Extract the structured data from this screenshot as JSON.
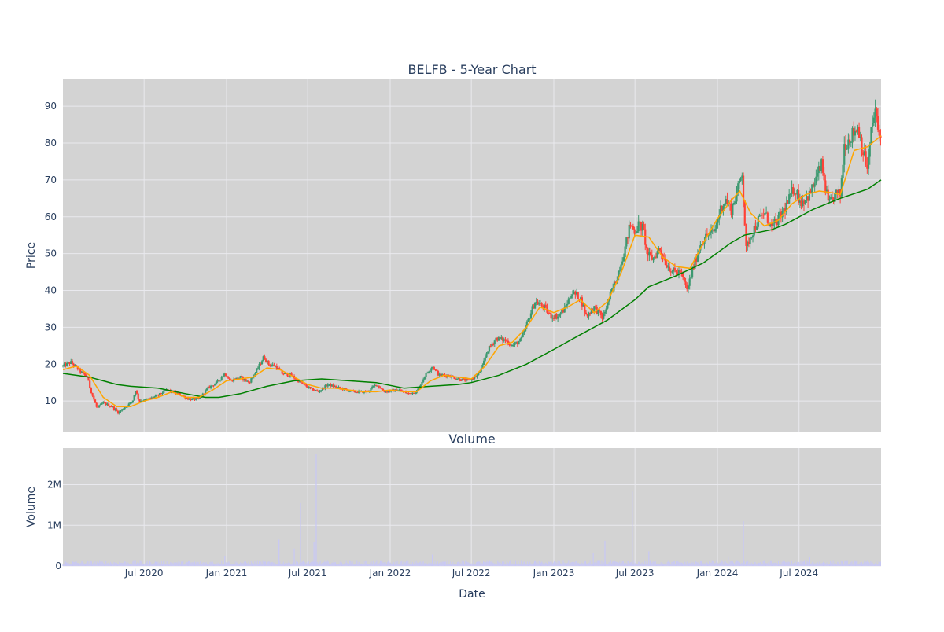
{
  "chart_data": {
    "type": "candlestick",
    "title": "BELFB - 5-Year Chart",
    "subplot_title": "Volume",
    "xlabel": "Date",
    "ylabel_price": "Price",
    "ylabel_volume": "Volume",
    "x_range": [
      "2020-01-02",
      "2024-12-31"
    ],
    "x_ticks": [
      {
        "date": "2020-07-01",
        "label": "Jul 2020"
      },
      {
        "date": "2021-01-01",
        "label": "Jan 2021"
      },
      {
        "date": "2021-07-01",
        "label": "Jul 2021"
      },
      {
        "date": "2022-01-01",
        "label": "Jan 2022"
      },
      {
        "date": "2022-07-01",
        "label": "Jul 2022"
      },
      {
        "date": "2023-01-01",
        "label": "Jan 2023"
      },
      {
        "date": "2023-07-01",
        "label": "Jul 2023"
      },
      {
        "date": "2024-01-01",
        "label": "Jan 2024"
      },
      {
        "date": "2024-07-01",
        "label": "Jul 2024"
      }
    ],
    "price_ylim": [
      1.5,
      97.5
    ],
    "price_ticks": [
      10,
      20,
      30,
      40,
      50,
      60,
      70,
      80,
      90
    ],
    "volume_ylim": [
      0,
      2900000
    ],
    "volume_ticks": [
      {
        "value": 0,
        "label": "0"
      },
      {
        "value": 1000000,
        "label": "1M"
      },
      {
        "value": 2000000,
        "label": "2M"
      }
    ],
    "grid": true,
    "colors": {
      "plot_bg": "#d3d3d3",
      "grid": "#e9e9ee",
      "increasing": "#3d9970",
      "decreasing": "#ff4136",
      "ma_short": "#ffa500",
      "ma_long": "#008000",
      "volume": "#c8c8f5"
    },
    "price_path": [
      [
        "2020-01-02",
        19.5
      ],
      [
        "2020-01-20",
        20.5
      ],
      [
        "2020-02-10",
        18.0
      ],
      [
        "2020-02-25",
        16.5
      ],
      [
        "2020-03-05",
        12.5
      ],
      [
        "2020-03-18",
        8.0
      ],
      [
        "2020-04-01",
        9.5
      ],
      [
        "2020-04-20",
        8.5
      ],
      [
        "2020-05-05",
        6.8
      ],
      [
        "2020-05-20",
        8.5
      ],
      [
        "2020-06-05",
        9.8
      ],
      [
        "2020-06-12",
        13.0
      ],
      [
        "2020-06-20",
        10.0
      ],
      [
        "2020-07-10",
        10.5
      ],
      [
        "2020-08-01",
        11.5
      ],
      [
        "2020-08-20",
        13.0
      ],
      [
        "2020-09-15",
        12.0
      ],
      [
        "2020-10-10",
        10.5
      ],
      [
        "2020-11-01",
        10.5
      ],
      [
        "2020-11-20",
        13.5
      ],
      [
        "2020-12-10",
        15.0
      ],
      [
        "2020-12-28",
        17.5
      ],
      [
        "2021-01-10",
        15.5
      ],
      [
        "2021-02-01",
        16.5
      ],
      [
        "2021-02-20",
        15.0
      ],
      [
        "2021-03-10",
        18.5
      ],
      [
        "2021-03-25",
        22.0
      ],
      [
        "2021-04-05",
        20.0
      ],
      [
        "2021-04-20",
        19.5
      ],
      [
        "2021-05-05",
        17.5
      ],
      [
        "2021-05-25",
        17.0
      ],
      [
        "2021-06-15",
        15.0
      ],
      [
        "2021-07-05",
        13.5
      ],
      [
        "2021-07-25",
        12.5
      ],
      [
        "2021-08-15",
        14.5
      ],
      [
        "2021-09-10",
        13.5
      ],
      [
        "2021-10-10",
        12.5
      ],
      [
        "2021-11-10",
        12.5
      ],
      [
        "2021-12-01",
        14.5
      ],
      [
        "2021-12-20",
        12.5
      ],
      [
        "2022-01-20",
        13.0
      ],
      [
        "2022-02-10",
        12.0
      ],
      [
        "2022-03-01",
        12.5
      ],
      [
        "2022-03-20",
        17.0
      ],
      [
        "2022-04-05",
        19.5
      ],
      [
        "2022-04-20",
        17.0
      ],
      [
        "2022-05-10",
        17.0
      ],
      [
        "2022-06-01",
        16.0
      ],
      [
        "2022-06-25",
        15.5
      ],
      [
        "2022-07-15",
        17.0
      ],
      [
        "2022-07-25",
        19.0
      ],
      [
        "2022-08-05",
        23.5
      ],
      [
        "2022-08-25",
        27.0
      ],
      [
        "2022-09-15",
        26.5
      ],
      [
        "2022-10-01",
        25.0
      ],
      [
        "2022-10-20",
        26.5
      ],
      [
        "2022-11-05",
        32.0
      ],
      [
        "2022-11-20",
        37.0
      ],
      [
        "2022-12-10",
        35.5
      ],
      [
        "2022-12-25",
        33.0
      ],
      [
        "2023-01-10",
        33.0
      ],
      [
        "2023-01-25",
        35.0
      ],
      [
        "2023-02-10",
        39.5
      ],
      [
        "2023-03-01",
        38.0
      ],
      [
        "2023-03-15",
        33.0
      ],
      [
        "2023-04-01",
        35.5
      ],
      [
        "2023-04-20",
        32.5
      ],
      [
        "2023-05-05",
        38.0
      ],
      [
        "2023-05-20",
        43.0
      ],
      [
        "2023-06-10",
        52.0
      ],
      [
        "2023-06-20",
        58.0
      ],
      [
        "2023-07-01",
        56.0
      ],
      [
        "2023-07-10",
        58.0
      ],
      [
        "2023-07-20",
        56.5
      ],
      [
        "2023-07-28",
        50.0
      ],
      [
        "2023-08-10",
        48.5
      ],
      [
        "2023-08-25",
        51.5
      ],
      [
        "2023-09-10",
        47.0
      ],
      [
        "2023-09-25",
        45.0
      ],
      [
        "2023-10-10",
        45.0
      ],
      [
        "2023-10-25",
        40.0
      ],
      [
        "2023-11-10",
        47.0
      ],
      [
        "2023-11-25",
        53.0
      ],
      [
        "2023-12-10",
        55.0
      ],
      [
        "2023-12-25",
        56.0
      ],
      [
        "2024-01-10",
        63.0
      ],
      [
        "2024-01-20",
        64.5
      ],
      [
        "2024-02-01",
        62.0
      ],
      [
        "2024-02-15",
        67.0
      ],
      [
        "2024-02-25",
        72.5
      ],
      [
        "2024-03-05",
        51.0
      ],
      [
        "2024-03-15",
        55.0
      ],
      [
        "2024-04-01",
        59.0
      ],
      [
        "2024-04-15",
        61.0
      ],
      [
        "2024-05-01",
        57.0
      ],
      [
        "2024-05-20",
        60.0
      ],
      [
        "2024-06-05",
        63.5
      ],
      [
        "2024-06-20",
        68.0
      ],
      [
        "2024-07-05",
        64.0
      ],
      [
        "2024-07-25",
        66.0
      ],
      [
        "2024-08-10",
        71.0
      ],
      [
        "2024-08-20",
        74.0
      ],
      [
        "2024-09-05",
        63.0
      ],
      [
        "2024-09-20",
        66.0
      ],
      [
        "2024-10-01",
        66.0
      ],
      [
        "2024-10-10",
        79.5
      ],
      [
        "2024-10-25",
        82.0
      ],
      [
        "2024-11-10",
        84.5
      ],
      [
        "2024-11-20",
        78.0
      ],
      [
        "2024-12-01",
        73.0
      ],
      [
        "2024-12-10",
        84.0
      ],
      [
        "2024-12-18",
        89.0
      ],
      [
        "2024-12-24",
        83.0
      ],
      [
        "2024-12-31",
        81.0
      ]
    ],
    "ma_short": [
      [
        "2020-01-02",
        18.5
      ],
      [
        "2020-02-01",
        19.5
      ],
      [
        "2020-03-01",
        17.0
      ],
      [
        "2020-04-01",
        11.0
      ],
      [
        "2020-05-01",
        8.5
      ],
      [
        "2020-06-01",
        8.5
      ],
      [
        "2020-07-01",
        10.0
      ],
      [
        "2020-08-01",
        11.0
      ],
      [
        "2020-09-01",
        12.5
      ],
      [
        "2020-10-01",
        11.0
      ],
      [
        "2020-11-01",
        11.0
      ],
      [
        "2020-12-01",
        13.0
      ],
      [
        "2021-01-01",
        15.5
      ],
      [
        "2021-02-01",
        16.0
      ],
      [
        "2021-03-01",
        16.5
      ],
      [
        "2021-04-01",
        19.0
      ],
      [
        "2021-05-01",
        18.5
      ],
      [
        "2021-06-01",
        16.5
      ],
      [
        "2021-07-01",
        14.5
      ],
      [
        "2021-08-01",
        13.5
      ],
      [
        "2021-09-01",
        13.5
      ],
      [
        "2021-10-01",
        13.0
      ],
      [
        "2021-11-01",
        12.5
      ],
      [
        "2021-12-01",
        12.5
      ],
      [
        "2022-01-01",
        13.0
      ],
      [
        "2022-02-01",
        12.5
      ],
      [
        "2022-03-01",
        12.5
      ],
      [
        "2022-04-01",
        15.5
      ],
      [
        "2022-05-01",
        17.0
      ],
      [
        "2022-06-01",
        16.5
      ],
      [
        "2022-07-01",
        16.0
      ],
      [
        "2022-08-01",
        19.5
      ],
      [
        "2022-09-01",
        25.0
      ],
      [
        "2022-10-01",
        26.0
      ],
      [
        "2022-11-01",
        30.0
      ],
      [
        "2022-12-01",
        35.5
      ],
      [
        "2023-01-01",
        34.0
      ],
      [
        "2023-02-01",
        35.5
      ],
      [
        "2023-03-01",
        37.5
      ],
      [
        "2023-04-01",
        34.0
      ],
      [
        "2023-05-01",
        37.0
      ],
      [
        "2023-06-01",
        45.0
      ],
      [
        "2023-07-01",
        55.0
      ],
      [
        "2023-08-01",
        54.5
      ],
      [
        "2023-09-01",
        49.0
      ],
      [
        "2023-10-01",
        46.5
      ],
      [
        "2023-11-01",
        46.0
      ],
      [
        "2023-12-01",
        53.0
      ],
      [
        "2024-01-01",
        59.5
      ],
      [
        "2024-02-01",
        64.5
      ],
      [
        "2024-02-20",
        67.0
      ],
      [
        "2024-03-15",
        61.0
      ],
      [
        "2024-04-15",
        57.5
      ],
      [
        "2024-05-15",
        59.0
      ],
      [
        "2024-06-15",
        63.5
      ],
      [
        "2024-07-15",
        66.0
      ],
      [
        "2024-08-15",
        67.0
      ],
      [
        "2024-09-15",
        66.5
      ],
      [
        "2024-10-01",
        66.0
      ],
      [
        "2024-11-01",
        78.0
      ],
      [
        "2024-12-01",
        79.0
      ],
      [
        "2024-12-31",
        82.0
      ]
    ],
    "ma_long": [
      [
        "2020-01-02",
        17.5
      ],
      [
        "2020-03-01",
        16.5
      ],
      [
        "2020-05-01",
        14.5
      ],
      [
        "2020-06-01",
        14.0
      ],
      [
        "2020-08-01",
        13.5
      ],
      [
        "2020-10-01",
        12.0
      ],
      [
        "2020-11-15",
        11.0
      ],
      [
        "2020-12-15",
        11.0
      ],
      [
        "2021-02-01",
        12.0
      ],
      [
        "2021-04-01",
        14.0
      ],
      [
        "2021-06-01",
        15.5
      ],
      [
        "2021-08-01",
        16.0
      ],
      [
        "2021-10-01",
        15.5
      ],
      [
        "2021-12-01",
        15.0
      ],
      [
        "2022-02-01",
        13.5
      ],
      [
        "2022-04-01",
        14.0
      ],
      [
        "2022-06-01",
        14.5
      ],
      [
        "2022-07-01",
        15.0
      ],
      [
        "2022-09-01",
        17.0
      ],
      [
        "2022-11-01",
        20.0
      ],
      [
        "2023-01-01",
        24.0
      ],
      [
        "2023-03-01",
        28.0
      ],
      [
        "2023-05-01",
        32.0
      ],
      [
        "2023-07-01",
        37.5
      ],
      [
        "2023-08-01",
        41.0
      ],
      [
        "2023-09-01",
        42.5
      ],
      [
        "2023-10-01",
        44.0
      ],
      [
        "2023-12-01",
        47.5
      ],
      [
        "2024-02-01",
        53.0
      ],
      [
        "2024-03-01",
        55.0
      ],
      [
        "2024-05-01",
        56.5
      ],
      [
        "2024-06-01",
        58.0
      ],
      [
        "2024-08-01",
        62.0
      ],
      [
        "2024-10-01",
        65.0
      ],
      [
        "2024-12-01",
        67.5
      ],
      [
        "2024-12-31",
        70.0
      ]
    ],
    "volume_spikes": [
      [
        "2021-04-28",
        650000
      ],
      [
        "2021-06-01",
        430000
      ],
      [
        "2021-06-15",
        1550000
      ],
      [
        "2021-07-20",
        2750000
      ],
      [
        "2021-07-15",
        580000
      ],
      [
        "2023-03-30",
        320000
      ],
      [
        "2023-04-25",
        620000
      ],
      [
        "2023-06-25",
        1830000
      ],
      [
        "2023-08-01",
        360000
      ],
      [
        "2024-01-25",
        240000
      ],
      [
        "2024-02-28",
        1100000
      ],
      [
        "2020-12-28",
        250000
      ],
      [
        "2022-04-05",
        280000
      ],
      [
        "2024-07-25",
        230000
      ]
    ],
    "volume_baseline": 80000
  }
}
